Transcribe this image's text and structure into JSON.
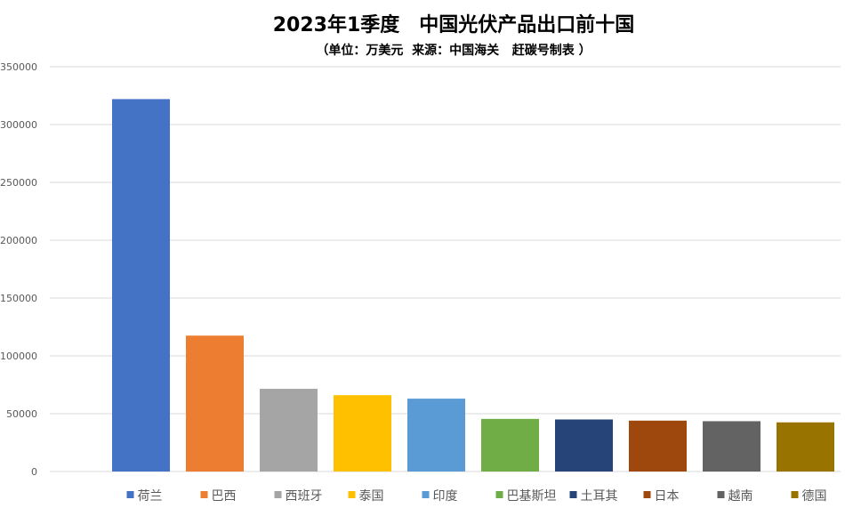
{
  "chart_data": {
    "type": "bar",
    "title": "2023年1季度　中国光伏产品出口前十国",
    "subtitle": "（单位：万美元  来源：中国海关   赶碳号制表 ）",
    "categories": [
      "荷兰",
      "巴西",
      "西班牙",
      "泰国",
      "印度",
      "巴基斯坦",
      "土耳其",
      "日本",
      "越南",
      "德国"
    ],
    "values": [
      322000,
      117500,
      71500,
      66000,
      63000,
      45500,
      45000,
      44000,
      43500,
      42500
    ],
    "colors": [
      "#4472C4",
      "#ED7D31",
      "#A5A5A5",
      "#FFC000",
      "#5B9BD5",
      "#70AD47",
      "#264478",
      "#9E480E",
      "#636363",
      "#997300"
    ],
    "y_ticks": [
      "0",
      "50000",
      "100000",
      "150000",
      "200000",
      "250000",
      "300000",
      "350000"
    ],
    "ylim": [
      0,
      350000
    ],
    "grid": true,
    "legend_position": "bottom"
  }
}
